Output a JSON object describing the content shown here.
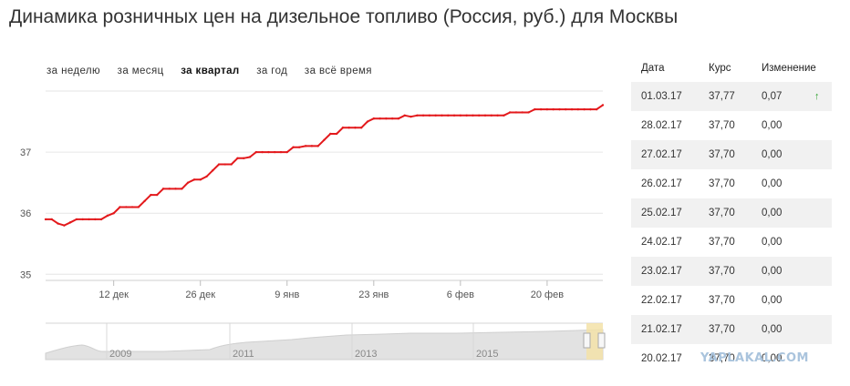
{
  "title": "Динамика розничных цен на дизельное топливо (Россия, руб.) для Москвы",
  "periods": [
    {
      "label": "за неделю",
      "active": false
    },
    {
      "label": "за месяц",
      "active": false
    },
    {
      "label": "за квартал",
      "active": true
    },
    {
      "label": "за год",
      "active": false
    },
    {
      "label": "за всё время",
      "active": false
    }
  ],
  "chart_data": {
    "type": "line",
    "title": "Динамика розничных цен на дизельное топливо (Россия, руб.) для Москвы",
    "xlabel": "",
    "ylabel": "",
    "x": [
      "2016-12-01",
      "2016-12-02",
      "2016-12-03",
      "2016-12-04",
      "2016-12-05",
      "2016-12-06",
      "2016-12-07",
      "2016-12-08",
      "2016-12-09",
      "2016-12-10",
      "2016-12-11",
      "2016-12-12",
      "2016-12-13",
      "2016-12-14",
      "2016-12-15",
      "2016-12-16",
      "2016-12-17",
      "2016-12-18",
      "2016-12-19",
      "2016-12-20",
      "2016-12-21",
      "2016-12-22",
      "2016-12-23",
      "2016-12-24",
      "2016-12-25",
      "2016-12-26",
      "2016-12-27",
      "2016-12-28",
      "2016-12-29",
      "2016-12-30",
      "2016-12-31",
      "2017-01-01",
      "2017-01-02",
      "2017-01-03",
      "2017-01-04",
      "2017-01-05",
      "2017-01-06",
      "2017-01-07",
      "2017-01-08",
      "2017-01-09",
      "2017-01-10",
      "2017-01-11",
      "2017-01-12",
      "2017-01-13",
      "2017-01-14",
      "2017-01-15",
      "2017-01-16",
      "2017-01-17",
      "2017-01-18",
      "2017-01-19",
      "2017-01-20",
      "2017-01-21",
      "2017-01-22",
      "2017-01-23",
      "2017-01-24",
      "2017-01-25",
      "2017-01-26",
      "2017-01-27",
      "2017-01-28",
      "2017-01-29",
      "2017-01-30",
      "2017-01-31",
      "2017-02-01",
      "2017-02-02",
      "2017-02-03",
      "2017-02-04",
      "2017-02-05",
      "2017-02-06",
      "2017-02-07",
      "2017-02-08",
      "2017-02-09",
      "2017-02-10",
      "2017-02-11",
      "2017-02-12",
      "2017-02-13",
      "2017-02-14",
      "2017-02-15",
      "2017-02-16",
      "2017-02-17",
      "2017-02-18",
      "2017-02-19",
      "2017-02-20",
      "2017-02-21",
      "2017-02-22",
      "2017-02-23",
      "2017-02-24",
      "2017-02-25",
      "2017-02-26",
      "2017-02-27",
      "2017-02-28",
      "2017-03-01"
    ],
    "y": [
      35.9,
      35.9,
      35.83,
      35.8,
      35.85,
      35.9,
      35.9,
      35.9,
      35.9,
      35.9,
      35.96,
      36.0,
      36.1,
      36.1,
      36.1,
      36.1,
      36.2,
      36.3,
      36.3,
      36.4,
      36.4,
      36.4,
      36.4,
      36.5,
      36.55,
      36.55,
      36.6,
      36.7,
      36.8,
      36.8,
      36.8,
      36.9,
      36.9,
      36.92,
      37.0,
      37.0,
      37.0,
      37.0,
      37.0,
      37.0,
      37.08,
      37.08,
      37.1,
      37.1,
      37.1,
      37.2,
      37.3,
      37.3,
      37.4,
      37.4,
      37.4,
      37.4,
      37.5,
      37.55,
      37.55,
      37.55,
      37.55,
      37.55,
      37.6,
      37.58,
      37.6,
      37.6,
      37.6,
      37.6,
      37.6,
      37.6,
      37.6,
      37.6,
      37.6,
      37.6,
      37.6,
      37.6,
      37.6,
      37.6,
      37.6,
      37.65,
      37.65,
      37.65,
      37.65,
      37.7,
      37.7,
      37.7,
      37.7,
      37.7,
      37.7,
      37.7,
      37.7,
      37.7,
      37.7,
      37.7,
      37.77
    ],
    "ylim": [
      34.9,
      38.0
    ],
    "yticks": [
      "35",
      "36",
      "37"
    ],
    "xticks": [
      "12 дек",
      "26 дек",
      "9 янв",
      "23 янв",
      "6 фев",
      "20 фев"
    ],
    "xtick_dates": [
      "2016-12-12",
      "2016-12-26",
      "2017-01-09",
      "2017-01-23",
      "2017-02-06",
      "2017-02-20"
    ],
    "grid": true,
    "color": "#e3191c",
    "navigator": {
      "labels": [
        "2009",
        "2011",
        "2013",
        "2015"
      ]
    }
  },
  "table": {
    "headers": [
      "Дата",
      "Курс",
      "Изменение"
    ],
    "rows": [
      {
        "date": "01.03.17",
        "rate": "37,77",
        "change": "0,07",
        "arrow": "↑"
      },
      {
        "date": "28.02.17",
        "rate": "37,70",
        "change": "0,00",
        "arrow": ""
      },
      {
        "date": "27.02.17",
        "rate": "37,70",
        "change": "0,00",
        "arrow": ""
      },
      {
        "date": "26.02.17",
        "rate": "37,70",
        "change": "0,00",
        "arrow": ""
      },
      {
        "date": "25.02.17",
        "rate": "37,70",
        "change": "0,00",
        "arrow": ""
      },
      {
        "date": "24.02.17",
        "rate": "37,70",
        "change": "0,00",
        "arrow": ""
      },
      {
        "date": "23.02.17",
        "rate": "37,70",
        "change": "0,00",
        "arrow": ""
      },
      {
        "date": "22.02.17",
        "rate": "37,70",
        "change": "0,00",
        "arrow": ""
      },
      {
        "date": "21.02.17",
        "rate": "37,70",
        "change": "0,00",
        "arrow": ""
      },
      {
        "date": "20.02.17",
        "rate": "37,70",
        "change": "0,00",
        "arrow": ""
      }
    ]
  },
  "watermark": "YAPLAKAL.COM"
}
